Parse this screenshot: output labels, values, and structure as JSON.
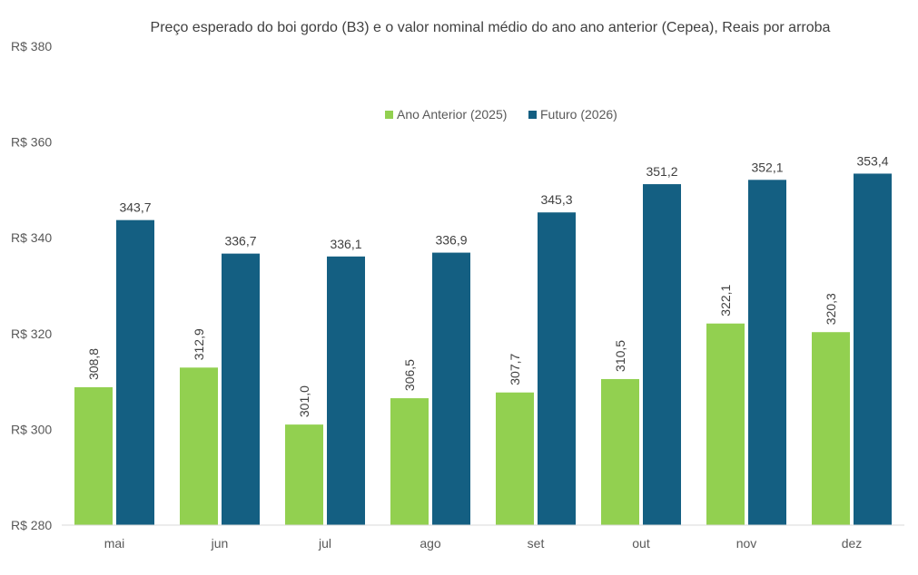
{
  "chart_data": {
    "type": "bar",
    "title": "Preço esperado do boi gordo (B3) e o valor nominal médio do ano ano anterior (Cepea), Reais por arroba",
    "xlabel": "",
    "ylabel": "",
    "ylim": [
      280,
      380
    ],
    "y_ticks": [
      280,
      300,
      320,
      340,
      360,
      380
    ],
    "y_tick_labels": [
      "R$ 280",
      "R$ 300",
      "R$ 320",
      "R$ 340",
      "R$ 360",
      "R$ 380"
    ],
    "categories": [
      "mai",
      "jun",
      "jul",
      "ago",
      "set",
      "out",
      "nov",
      "dez"
    ],
    "series": [
      {
        "name": "Ano Anterior (2025)",
        "color": "#92D050",
        "values": [
          308.8,
          312.9,
          301.0,
          306.5,
          307.7,
          310.5,
          322.1,
          320.3
        ],
        "labels": [
          "308,8",
          "312,9",
          "301,0",
          "306,5",
          "307,7",
          "310,5",
          "322,1",
          "320,3"
        ]
      },
      {
        "name": "Futuro (2026)",
        "color": "#145F82",
        "values": [
          343.7,
          336.7,
          336.1,
          336.9,
          345.3,
          351.2,
          352.1,
          353.4
        ],
        "labels": [
          "343,7",
          "336,7",
          "336,1",
          "336,9",
          "345,3",
          "351,2",
          "352,1",
          "353,4"
        ]
      }
    ],
    "legend_position": "top-center",
    "grid": false
  }
}
